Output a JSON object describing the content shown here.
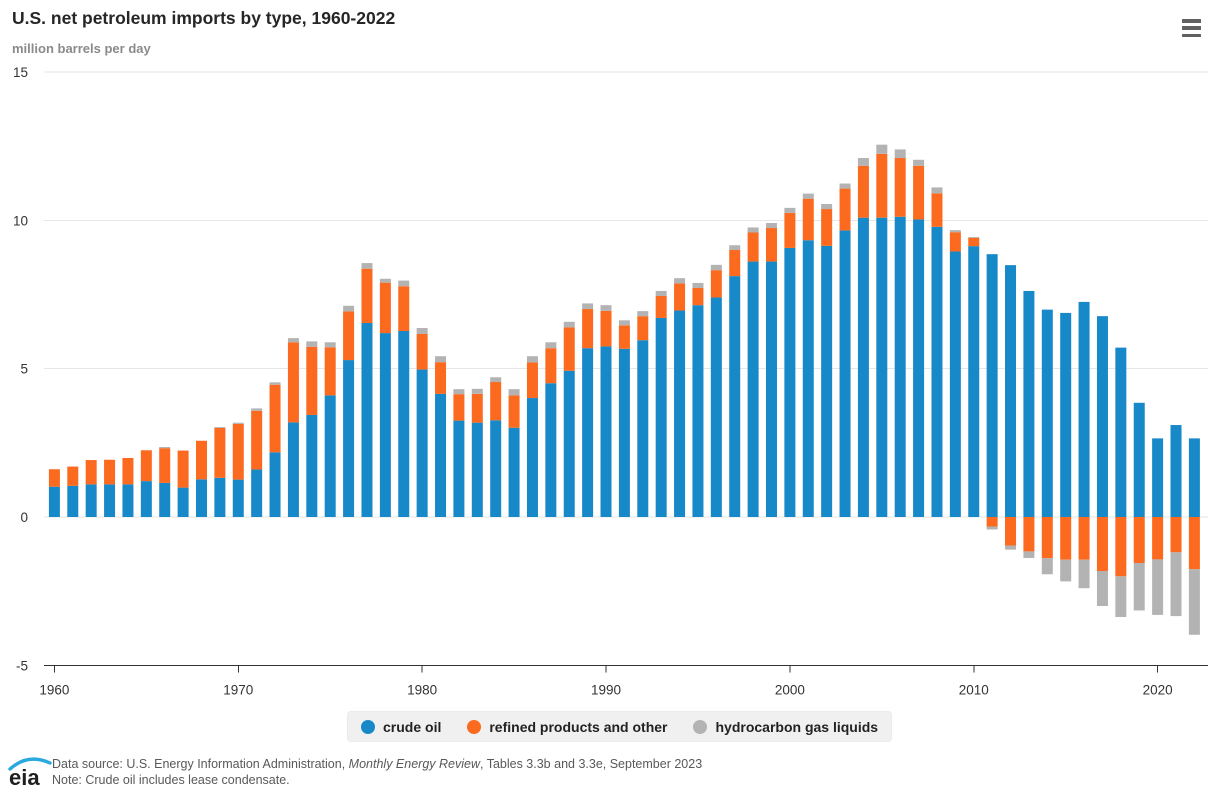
{
  "header": {
    "title": "U.S. net petroleum imports by type, 1960-2022",
    "subtitle": "million barrels per day"
  },
  "menu": {
    "icon": "hamburger-menu-icon"
  },
  "chart_data": {
    "type": "bar",
    "stacked": true,
    "title": "U.S. net petroleum imports by type, 1960-2022",
    "ylabel": "million barrels per day",
    "xlabel": "",
    "ylim": [
      -5,
      15
    ],
    "yticks": [
      15,
      10,
      5,
      0,
      -5
    ],
    "xticks": [
      1960,
      1970,
      1980,
      1990,
      2000,
      2010,
      2020
    ],
    "grid": true,
    "legend_position": "bottom",
    "x": [
      1960,
      1961,
      1962,
      1963,
      1964,
      1965,
      1966,
      1967,
      1968,
      1969,
      1970,
      1971,
      1972,
      1973,
      1974,
      1975,
      1976,
      1977,
      1978,
      1979,
      1980,
      1981,
      1982,
      1983,
      1984,
      1985,
      1986,
      1987,
      1988,
      1989,
      1990,
      1991,
      1992,
      1993,
      1994,
      1995,
      1996,
      1997,
      1998,
      1999,
      2000,
      2001,
      2002,
      2003,
      2004,
      2005,
      2006,
      2007,
      2008,
      2009,
      2010,
      2011,
      2012,
      2013,
      2014,
      2015,
      2016,
      2017,
      2018,
      2019,
      2020,
      2021,
      2022
    ],
    "series": [
      {
        "name": "crude oil",
        "color": "#1789c9",
        "values": [
          1.02,
          1.05,
          1.1,
          1.1,
          1.1,
          1.21,
          1.15,
          0.99,
          1.27,
          1.32,
          1.26,
          1.6,
          2.18,
          3.19,
          3.44,
          4.1,
          5.29,
          6.54,
          6.2,
          6.27,
          4.97,
          4.15,
          3.25,
          3.18,
          3.26,
          3.01,
          4.01,
          4.51,
          4.93,
          5.69,
          5.75,
          5.67,
          5.96,
          6.71,
          6.96,
          7.14,
          7.4,
          8.12,
          8.61,
          8.61,
          9.07,
          9.33,
          9.14,
          9.66,
          10.09,
          10.09,
          10.12,
          10.03,
          9.78,
          8.95,
          9.13,
          8.86,
          8.49,
          7.62,
          6.99,
          6.88,
          7.25,
          6.77,
          5.71,
          3.85,
          2.65,
          3.1,
          2.65
        ]
      },
      {
        "name": "refined products and other",
        "color": "#fb6a1e",
        "values": [
          0.59,
          0.65,
          0.82,
          0.83,
          0.89,
          1.04,
          1.17,
          1.25,
          1.3,
          1.68,
          1.88,
          1.98,
          2.28,
          2.7,
          2.3,
          1.62,
          1.64,
          1.83,
          1.7,
          1.51,
          1.2,
          1.07,
          0.89,
          0.97,
          1.29,
          1.09,
          1.2,
          1.18,
          1.46,
          1.32,
          1.2,
          0.79,
          0.81,
          0.74,
          0.91,
          0.58,
          0.92,
          0.88,
          0.98,
          1.13,
          1.18,
          1.4,
          1.24,
          1.41,
          1.75,
          2.15,
          1.98,
          1.81,
          1.13,
          0.65,
          0.28,
          -0.32,
          -0.96,
          -1.16,
          -1.39,
          -1.44,
          -1.44,
          -1.82,
          -2.0,
          -1.55,
          -1.43,
          -1.19,
          -1.76
        ]
      },
      {
        "name": "hydrocarbon gas liquids",
        "color": "#b3b3b3",
        "values": [
          0,
          0,
          0,
          0,
          0,
          0,
          0.04,
          0,
          0,
          0.03,
          0.04,
          0.08,
          0.08,
          0.14,
          0.18,
          0.17,
          0.19,
          0.19,
          0.13,
          0.19,
          0.2,
          0.2,
          0.17,
          0.17,
          0.16,
          0.21,
          0.21,
          0.2,
          0.19,
          0.19,
          0.19,
          0.17,
          0.17,
          0.17,
          0.18,
          0.17,
          0.18,
          0.16,
          0.17,
          0.17,
          0.17,
          0.17,
          0.17,
          0.17,
          0.26,
          0.31,
          0.29,
          0.2,
          0.2,
          0.07,
          0.03,
          -0.1,
          -0.14,
          -0.22,
          -0.54,
          -0.73,
          -0.96,
          -1.18,
          -1.37,
          -1.6,
          -1.87,
          -2.15,
          -2.21
        ]
      }
    ]
  },
  "footer": {
    "source_prefix": "Data source: U.S. Energy Information Administration, ",
    "source_italic": "Monthly Energy Review",
    "source_suffix": ", Tables 3.3b and 3.3e, September 2023",
    "note": "Note: Crude oil includes lease condensate.",
    "logo_text": "eia"
  },
  "colors": {
    "axis_label": "#333333",
    "gridline": "#e6e6e6",
    "axis_line": "#333333",
    "legend_bg": "#f0f0f0",
    "logo_swoosh": "#2aa8e0"
  }
}
